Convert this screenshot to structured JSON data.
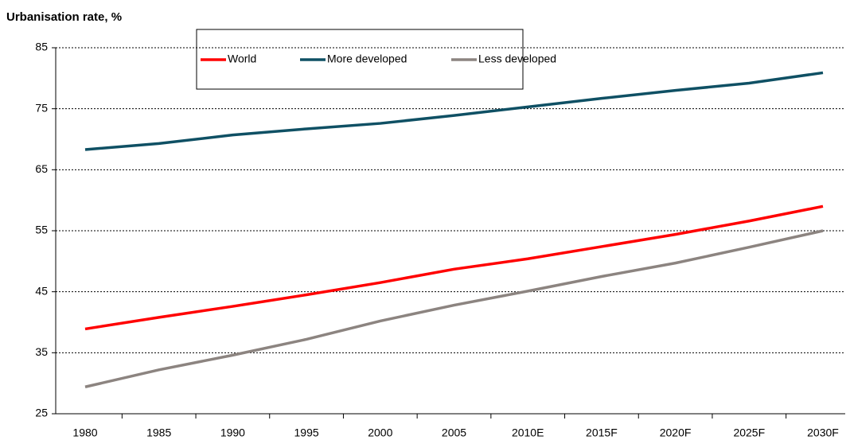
{
  "chart_data": {
    "type": "line",
    "title": "Urbanisation rate, %",
    "categories": [
      "1980",
      "1985",
      "1990",
      "1995",
      "2000",
      "2005",
      "2010E",
      "2015F",
      "2020F",
      "2025F",
      "2030F"
    ],
    "series": [
      {
        "name": "World",
        "color": "#ff0000",
        "values": [
          38.9,
          40.8,
          42.6,
          44.5,
          46.5,
          48.7,
          50.4,
          52.4,
          54.4,
          56.6,
          59.0
        ]
      },
      {
        "name": "More developed",
        "color": "#0f5064",
        "values": [
          68.3,
          69.3,
          70.7,
          71.7,
          72.6,
          73.9,
          75.3,
          76.7,
          78.0,
          79.2,
          80.9
        ]
      },
      {
        "name": "Less developed",
        "color": "#8c8480",
        "values": [
          29.4,
          32.2,
          34.6,
          37.2,
          40.2,
          42.8,
          45.1,
          47.5,
          49.7,
          52.3,
          55.0
        ]
      }
    ],
    "ylim": [
      25,
      85
    ],
    "yticks": [
      25,
      35,
      45,
      55,
      65,
      75,
      85
    ],
    "grid": true,
    "legend": "top"
  }
}
